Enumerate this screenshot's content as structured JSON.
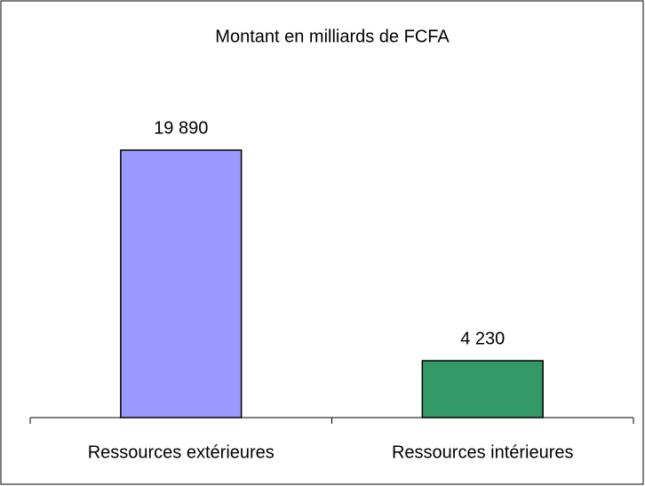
{
  "chart_data": {
    "type": "bar",
    "title": "Montant en milliards de FCFA",
    "categories": [
      "Ressources extérieures",
      "Ressources intérieures"
    ],
    "values": [
      19890,
      4230
    ],
    "value_labels": [
      "19 890",
      "4 230"
    ],
    "colors": [
      "#9999ff",
      "#339966"
    ],
    "grid": false
  }
}
